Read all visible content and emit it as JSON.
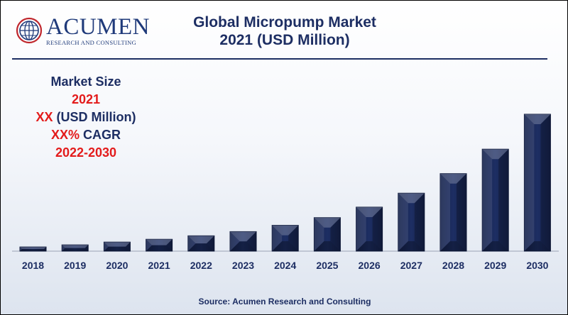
{
  "logo": {
    "name": "ACUMEN",
    "subtitle": "RESEARCH AND CONSULTING",
    "colors": {
      "primary": "#1f3a7a",
      "accent": "#c0272d"
    }
  },
  "title_line1": "Global Micropump Market",
  "title_line2": "2021 (USD Million)",
  "stats": {
    "label": "Market Size",
    "year": "2021",
    "value_prefix": "XX",
    "value_unit": " (USD Million)",
    "cagr_prefix": "XX%",
    "cagr_label": " CAGR",
    "period": "2022-2030"
  },
  "source": "Source: Acumen Research and Consulting",
  "colors": {
    "bar": "#1d2e63",
    "title": "#1d2e63",
    "highlight": "#e31b1b"
  },
  "chart_data": {
    "type": "bar",
    "categories": [
      "2018",
      "2019",
      "2020",
      "2021",
      "2022",
      "2023",
      "2024",
      "2025",
      "2026",
      "2027",
      "2028",
      "2029",
      "2030"
    ],
    "values": [
      6,
      9,
      13,
      17,
      22,
      28,
      37,
      48,
      63,
      83,
      111,
      146,
      196
    ],
    "title": "Global Micropump Market 2021 (USD Million)",
    "xlabel": "",
    "ylabel": "",
    "ylim": [
      0,
      200
    ],
    "grid": false,
    "legend": "none"
  }
}
